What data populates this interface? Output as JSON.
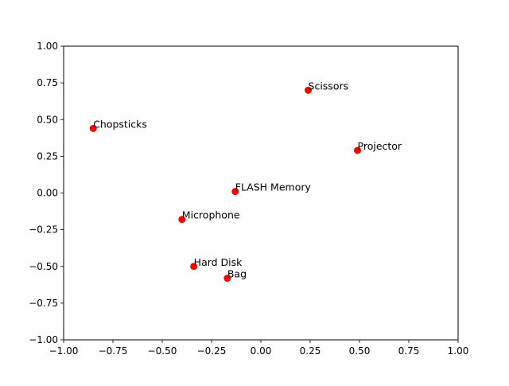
{
  "chart_data": {
    "type": "scatter",
    "title": "",
    "xlabel": "",
    "ylabel": "",
    "xlim": [
      -1.0,
      1.0
    ],
    "ylim": [
      -1.0,
      1.0
    ],
    "xticks": [
      "−1.00",
      "−0.75",
      "−0.50",
      "−0.25",
      "0.00",
      "0.25",
      "0.50",
      "0.75",
      "1.00"
    ],
    "yticks": [
      "−1.00",
      "−0.75",
      "−0.50",
      "−0.25",
      "0.00",
      "0.25",
      "0.50",
      "0.75",
      "1.00"
    ],
    "grid": false,
    "marker_color": "#ff0000",
    "points": [
      {
        "label": "Scissors",
        "x": 0.24,
        "y": 0.7
      },
      {
        "label": "Projector",
        "x": 0.49,
        "y": 0.29
      },
      {
        "label": "Chopsticks",
        "x": -0.85,
        "y": 0.44
      },
      {
        "label": "FLASH Memory",
        "x": -0.13,
        "y": 0.01
      },
      {
        "label": "Microphone",
        "x": -0.4,
        "y": -0.18
      },
      {
        "label": "Hard Disk",
        "x": -0.34,
        "y": -0.5
      },
      {
        "label": "Bag",
        "x": -0.17,
        "y": -0.58
      }
    ]
  }
}
